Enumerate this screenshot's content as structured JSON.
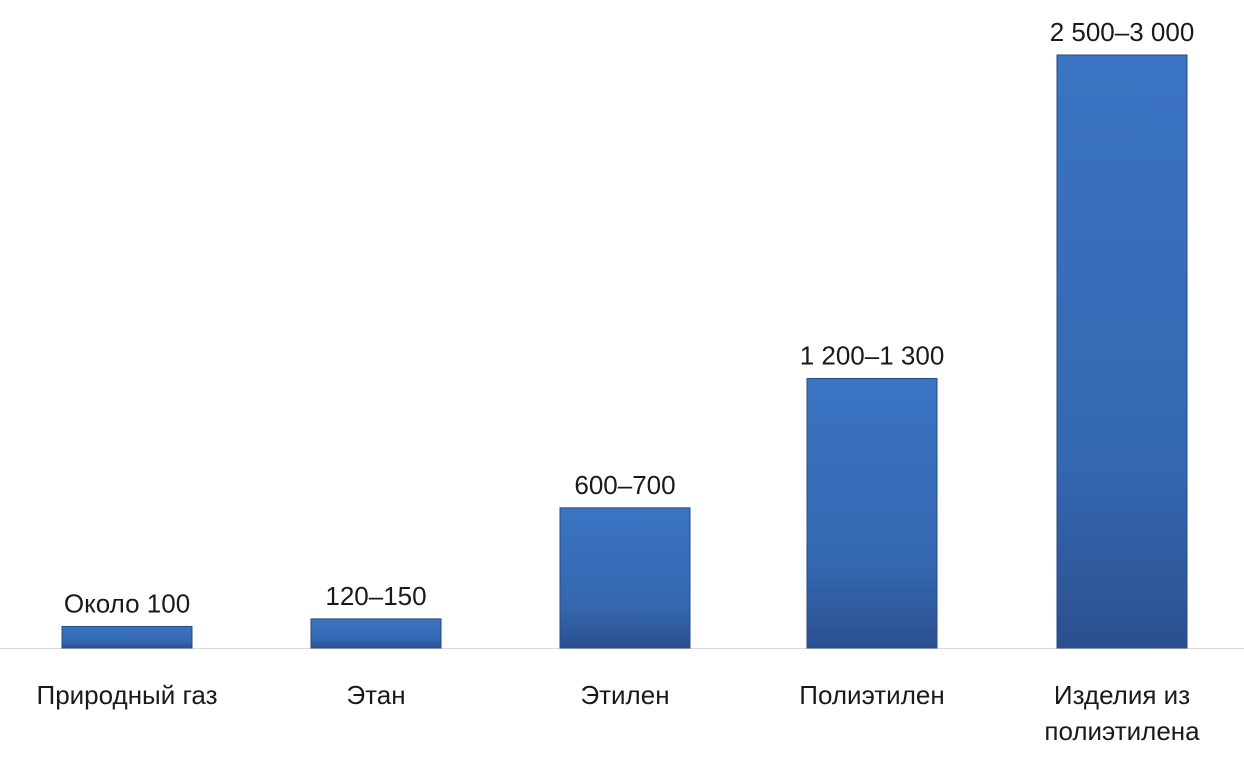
{
  "chart_data": {
    "type": "bar",
    "categories": [
      "Природный газ",
      "Этан",
      "Этилен",
      "Полиэтилен",
      "Изделия из\nполиэтилена"
    ],
    "values": [
      100,
      135,
      650,
      1250,
      2750
    ],
    "value_labels": [
      "Около 100",
      "120–150",
      "600–700",
      "1 200–1 300",
      "2 500–3 000"
    ],
    "color": "#3a74c2"
  }
}
